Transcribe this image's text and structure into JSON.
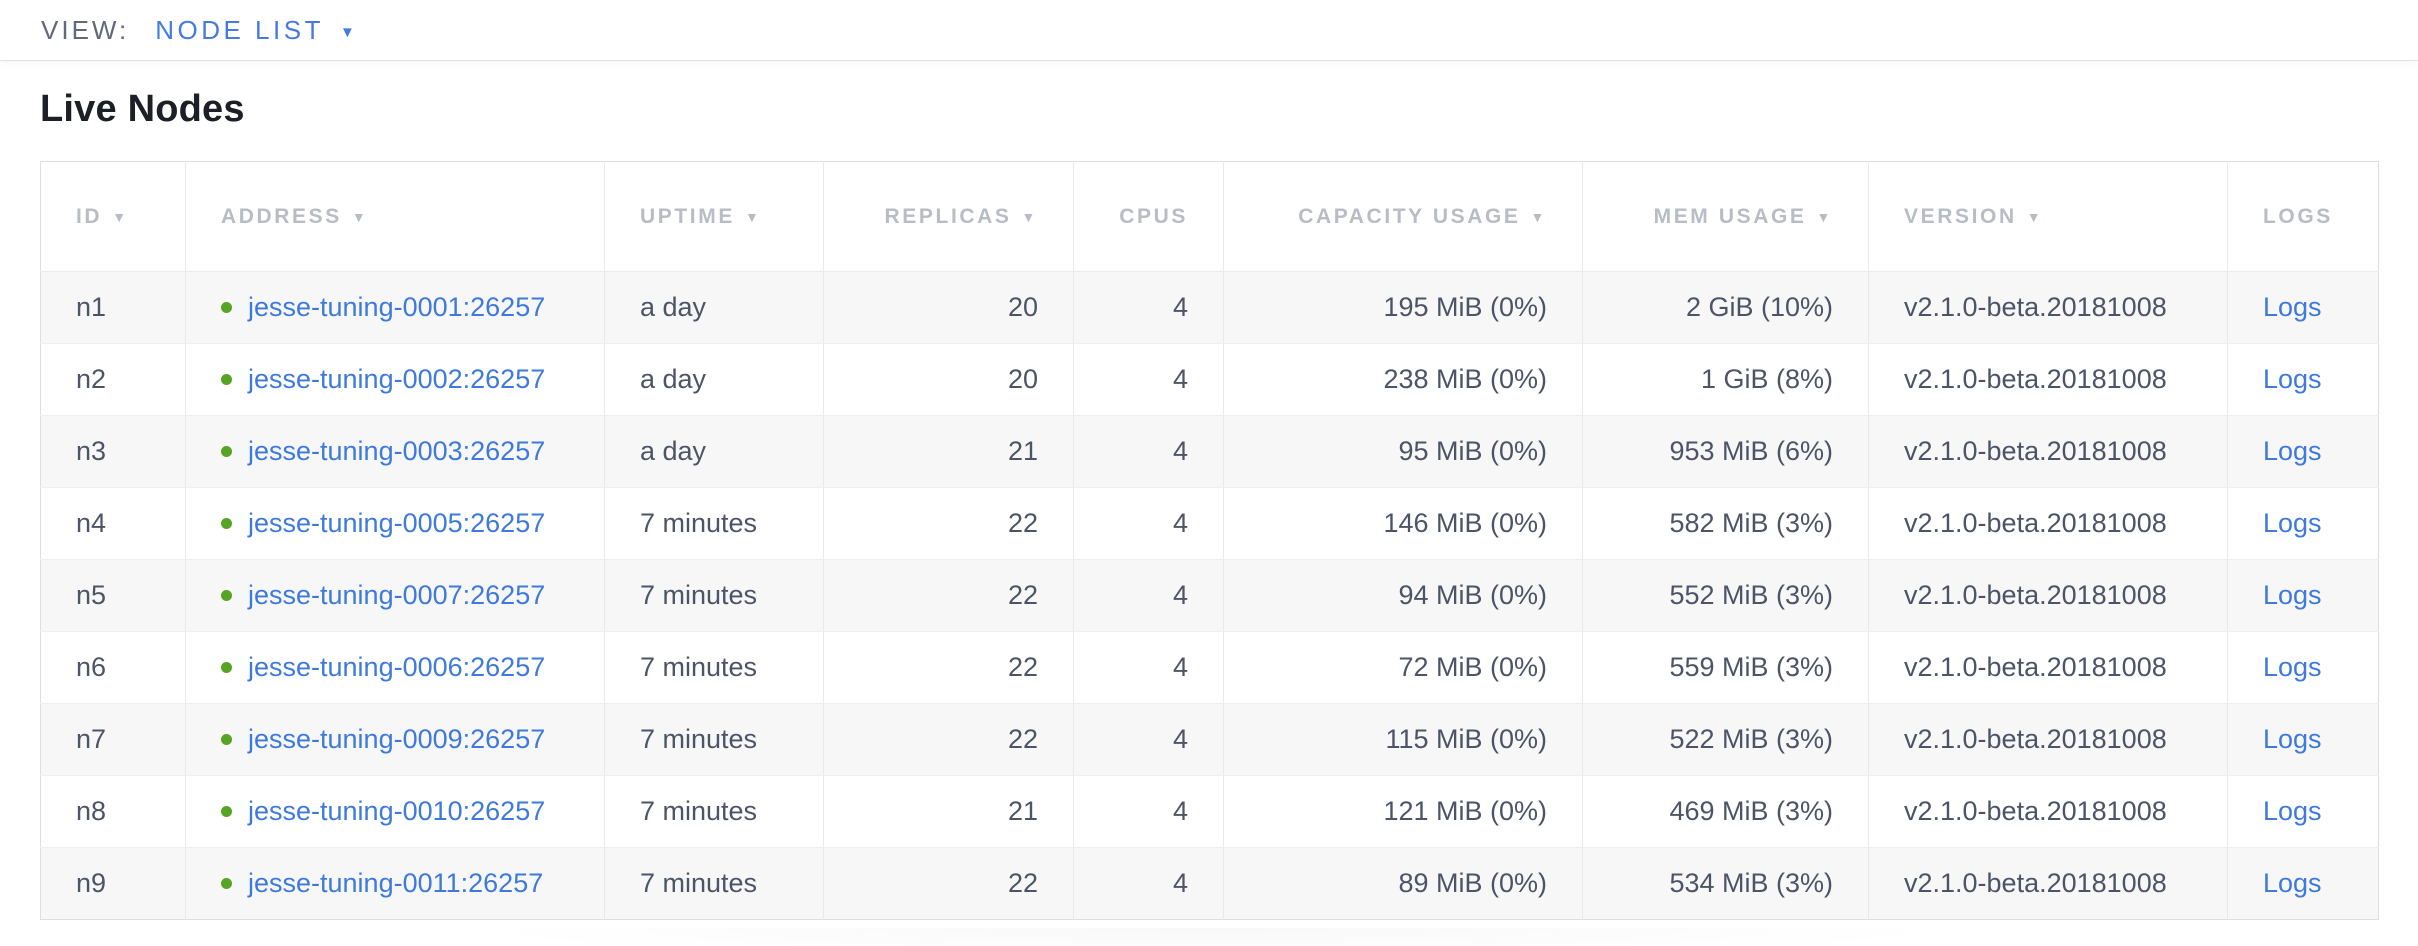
{
  "view_bar": {
    "label": "VIEW:",
    "selected": "NODE LIST",
    "caret_icon": "▼"
  },
  "page": {
    "title": "Live Nodes"
  },
  "icons": {
    "sort_caret": "▼"
  },
  "colors": {
    "accent_blue": "#4579e4",
    "link_blue": "#3e79de",
    "live_dot_green": "#57a425",
    "header_gray": "#b8bcc3",
    "cell_text": "#4d5468",
    "row_stripe": "#f7f7f7"
  },
  "table": {
    "columns": [
      {
        "key": "id",
        "label": "ID",
        "sortable": true,
        "align": "left"
      },
      {
        "key": "address",
        "label": "ADDRESS",
        "sortable": true,
        "align": "left"
      },
      {
        "key": "uptime",
        "label": "UPTIME",
        "sortable": true,
        "align": "left"
      },
      {
        "key": "replicas",
        "label": "REPLICAS",
        "sortable": true,
        "align": "right"
      },
      {
        "key": "cpus",
        "label": "CPUS",
        "sortable": false,
        "align": "right"
      },
      {
        "key": "capacity",
        "label": "CAPACITY USAGE",
        "sortable": true,
        "align": "right"
      },
      {
        "key": "mem",
        "label": "MEM USAGE",
        "sortable": true,
        "align": "right"
      },
      {
        "key": "version",
        "label": "VERSION",
        "sortable": true,
        "align": "left"
      },
      {
        "key": "logs",
        "label": "LOGS",
        "sortable": false,
        "align": "left"
      }
    ],
    "rows": [
      {
        "id": "n1",
        "status": "live",
        "address": "jesse-tuning-0001:26257",
        "uptime": "a day",
        "replicas": "20",
        "cpus": "4",
        "capacity": "195 MiB (0%)",
        "mem": "2 GiB (10%)",
        "version": "v2.1.0-beta.20181008",
        "logs": "Logs"
      },
      {
        "id": "n2",
        "status": "live",
        "address": "jesse-tuning-0002:26257",
        "uptime": "a day",
        "replicas": "20",
        "cpus": "4",
        "capacity": "238 MiB (0%)",
        "mem": "1 GiB (8%)",
        "version": "v2.1.0-beta.20181008",
        "logs": "Logs"
      },
      {
        "id": "n3",
        "status": "live",
        "address": "jesse-tuning-0003:26257",
        "uptime": "a day",
        "replicas": "21",
        "cpus": "4",
        "capacity": "95 MiB (0%)",
        "mem": "953 MiB (6%)",
        "version": "v2.1.0-beta.20181008",
        "logs": "Logs"
      },
      {
        "id": "n4",
        "status": "live",
        "address": "jesse-tuning-0005:26257",
        "uptime": "7 minutes",
        "replicas": "22",
        "cpus": "4",
        "capacity": "146 MiB (0%)",
        "mem": "582 MiB (3%)",
        "version": "v2.1.0-beta.20181008",
        "logs": "Logs"
      },
      {
        "id": "n5",
        "status": "live",
        "address": "jesse-tuning-0007:26257",
        "uptime": "7 minutes",
        "replicas": "22",
        "cpus": "4",
        "capacity": "94 MiB (0%)",
        "mem": "552 MiB (3%)",
        "version": "v2.1.0-beta.20181008",
        "logs": "Logs"
      },
      {
        "id": "n6",
        "status": "live",
        "address": "jesse-tuning-0006:26257",
        "uptime": "7 minutes",
        "replicas": "22",
        "cpus": "4",
        "capacity": "72 MiB (0%)",
        "mem": "559 MiB (3%)",
        "version": "v2.1.0-beta.20181008",
        "logs": "Logs"
      },
      {
        "id": "n7",
        "status": "live",
        "address": "jesse-tuning-0009:26257",
        "uptime": "7 minutes",
        "replicas": "22",
        "cpus": "4",
        "capacity": "115 MiB (0%)",
        "mem": "522 MiB (3%)",
        "version": "v2.1.0-beta.20181008",
        "logs": "Logs"
      },
      {
        "id": "n8",
        "status": "live",
        "address": "jesse-tuning-0010:26257",
        "uptime": "7 minutes",
        "replicas": "21",
        "cpus": "4",
        "capacity": "121 MiB (0%)",
        "mem": "469 MiB (3%)",
        "version": "v2.1.0-beta.20181008",
        "logs": "Logs"
      },
      {
        "id": "n9",
        "status": "live",
        "address": "jesse-tuning-0011:26257",
        "uptime": "7 minutes",
        "replicas": "22",
        "cpus": "4",
        "capacity": "89 MiB (0%)",
        "mem": "534 MiB (3%)",
        "version": "v2.1.0-beta.20181008",
        "logs": "Logs"
      }
    ]
  }
}
